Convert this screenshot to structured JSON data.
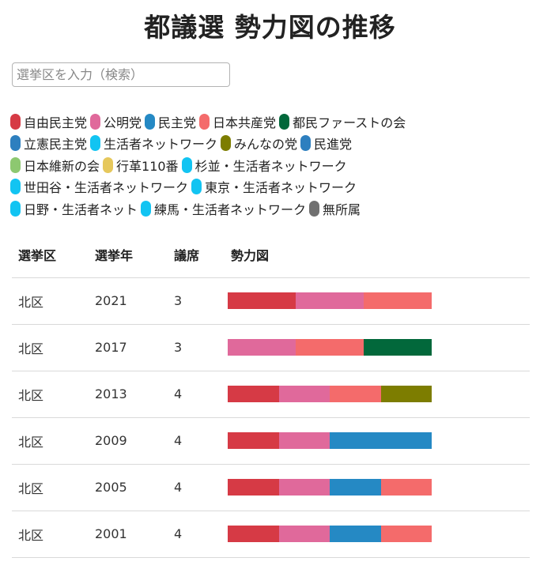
{
  "page": {
    "title": "都議選 勢力図の推移"
  },
  "search": {
    "placeholder": "選挙区を入力（検索）",
    "value": ""
  },
  "legend_rows": [
    [
      {
        "label": "自由民主党",
        "color": "#d63a45"
      },
      {
        "label": "公明党",
        "color": "#e0699b"
      },
      {
        "label": "民主党",
        "color": "#2589c4"
      },
      {
        "label": "日本共産党",
        "color": "#f46b6b"
      },
      {
        "label": "都民ファーストの会",
        "color": "#02683b"
      }
    ],
    [
      {
        "label": "立憲民主党",
        "color": "#2d7fbf"
      },
      {
        "label": "生活者ネットワーク",
        "color": "#12c4f2"
      },
      {
        "label": "みんなの党",
        "color": "#7d7d00"
      },
      {
        "label": "民進党",
        "color": "#2d7fbf"
      }
    ],
    [
      {
        "label": "日本維新の会",
        "color": "#8dc870"
      },
      {
        "label": "行革110番",
        "color": "#e6c85c"
      },
      {
        "label": "杉並・生活者ネットワーク",
        "color": "#12c4f2"
      }
    ],
    [
      {
        "label": "世田谷・生活者ネットワーク",
        "color": "#12c4f2"
      },
      {
        "label": "東京・生活者ネットワーク",
        "color": "#12c4f2"
      }
    ],
    [
      {
        "label": "日野・生活者ネット",
        "color": "#12c4f2"
      },
      {
        "label": "練馬・生活者ネットワーク",
        "color": "#12c4f2"
      },
      {
        "label": "無所属",
        "color": "#707070"
      }
    ]
  ],
  "table": {
    "headers": [
      "選挙区",
      "選挙年",
      "議席",
      "勢力図"
    ],
    "rows": [
      {
        "district": "北区",
        "year": "2021",
        "seats": "3",
        "segments": [
          "#d63a45",
          "#e0699b",
          "#f46b6b"
        ]
      },
      {
        "district": "北区",
        "year": "2017",
        "seats": "3",
        "segments": [
          "#e0699b",
          "#f46b6b",
          "#02683b"
        ]
      },
      {
        "district": "北区",
        "year": "2013",
        "seats": "4",
        "segments": [
          "#d63a45",
          "#e0699b",
          "#f46b6b",
          "#7d7d00"
        ]
      },
      {
        "district": "北区",
        "year": "2009",
        "seats": "4",
        "segments": [
          "#d63a45",
          "#e0699b",
          "#2589c4",
          "#2589c4"
        ]
      },
      {
        "district": "北区",
        "year": "2005",
        "seats": "4",
        "segments": [
          "#d63a45",
          "#e0699b",
          "#2589c4",
          "#f46b6b"
        ]
      },
      {
        "district": "北区",
        "year": "2001",
        "seats": "4",
        "segments": [
          "#d63a45",
          "#e0699b",
          "#2589c4",
          "#f46b6b"
        ]
      }
    ]
  }
}
